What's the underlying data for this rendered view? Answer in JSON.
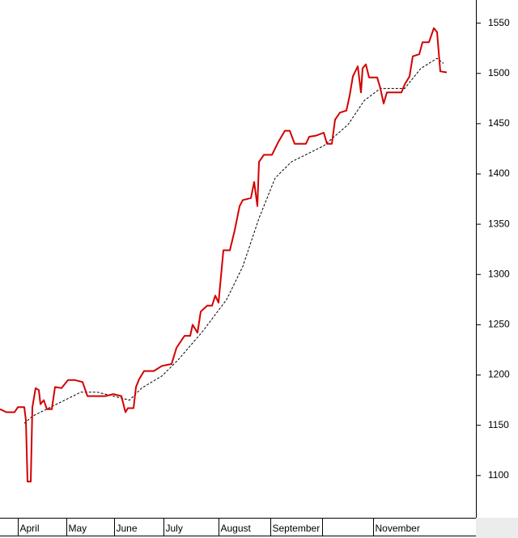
{
  "chart_data": {
    "type": "line",
    "xlim": [
      -11,
      283
    ],
    "xticks": [
      {
        "value": 0,
        "label": "April"
      },
      {
        "value": 30,
        "label": "May"
      },
      {
        "value": 59.5,
        "label": "June"
      },
      {
        "value": 90,
        "label": "July"
      },
      {
        "value": 124,
        "label": "August"
      },
      {
        "value": 156,
        "label": "September"
      },
      {
        "value": 188,
        "label": null
      },
      {
        "value": 219.5,
        "label": "November"
      }
    ],
    "ylim": [
      1058,
      1573
    ],
    "yticks": [
      1100,
      1150,
      1200,
      1250,
      1300,
      1350,
      1400,
      1450,
      1500,
      1550
    ],
    "series": [
      {
        "color": "#d40000",
        "dashed": false,
        "x": [
          -11,
          -7,
          -2,
          0,
          4,
          5,
          6,
          8,
          9,
          11,
          13,
          14,
          16,
          18,
          21,
          23,
          27,
          31,
          35,
          40,
          43,
          54,
          59,
          64,
          66.5,
          68,
          71.5,
          73,
          75,
          78,
          84,
          89,
          95,
          98,
          103,
          106.5,
          108,
          111,
          113,
          117,
          120,
          122,
          124,
          127,
          131,
          134,
          137,
          139,
          144,
          146,
          148,
          149,
          152,
          157,
          161,
          165,
          168,
          171,
          178,
          180,
          184,
          189,
          191,
          194,
          196,
          199,
          203,
          205,
          207,
          210,
          212,
          213,
          215,
          217,
          222,
          224,
          226,
          228,
          237,
          239,
          242,
          244,
          248,
          250,
          254,
          257,
          259,
          261,
          265
        ],
        "values": [
          1166,
          1163,
          1163,
          1168,
          1168,
          1155,
          1094,
          1094,
          1168,
          1187,
          1185,
          1171,
          1175,
          1166,
          1166,
          1188,
          1187,
          1195,
          1195,
          1193,
          1179,
          1179,
          1181,
          1179,
          1163,
          1167,
          1167,
          1188,
          1196,
          1204,
          1204,
          1209,
          1211,
          1227,
          1239,
          1239,
          1250,
          1242,
          1263,
          1269,
          1269,
          1279,
          1272,
          1324,
          1324,
          1344,
          1368,
          1374,
          1376,
          1392,
          1368,
          1412,
          1419,
          1419,
          1432,
          1443,
          1443,
          1430,
          1430,
          1437,
          1438,
          1441,
          1430,
          1430,
          1454,
          1461,
          1463,
          1478,
          1497,
          1507,
          1481,
          1505,
          1509,
          1496,
          1496,
          1485,
          1470,
          1481,
          1481,
          1489,
          1497,
          1517,
          1519,
          1531,
          1531,
          1545,
          1541,
          1502,
          1501
        ]
      },
      {
        "color": "#000000",
        "dashed": true,
        "x": [
          4,
          9,
          19,
          29,
          39,
          49,
          59,
          69,
          76.5,
          89,
          99,
          114,
          129,
          139,
          149,
          159,
          169,
          189,
          204,
          214,
          224,
          239,
          249,
          259,
          263
        ],
        "values": [
          1152,
          1159,
          1167,
          1175,
          1183,
          1183,
          1179,
          1175,
          1187,
          1199,
          1215,
          1243,
          1275,
          1308,
          1356,
          1396,
          1412,
          1428,
          1449,
          1473,
          1485,
          1485,
          1505,
          1515,
          1510
        ]
      }
    ]
  }
}
